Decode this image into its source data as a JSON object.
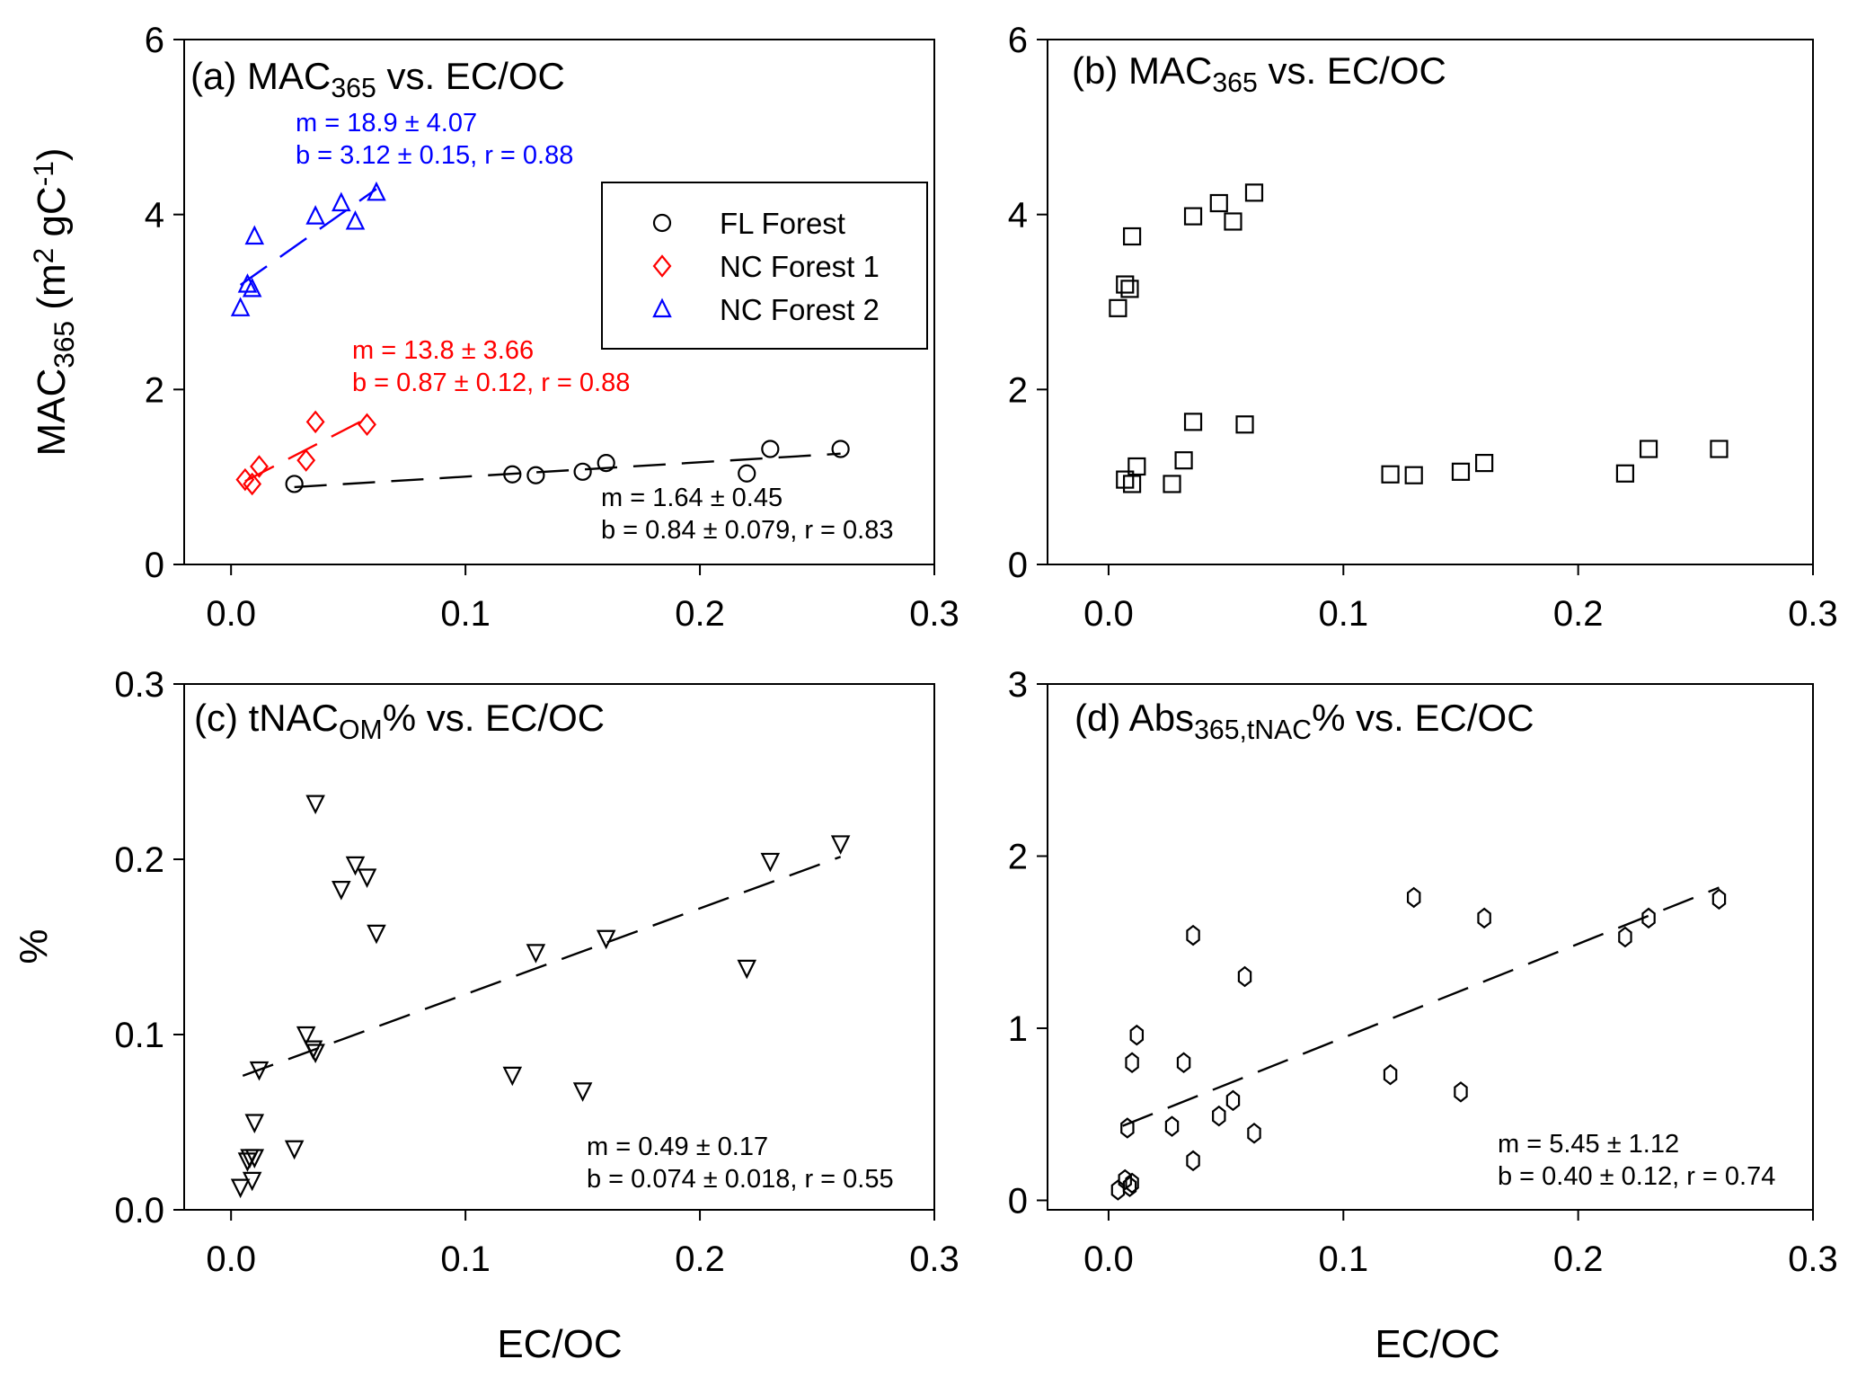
{
  "chart_data": [
    {
      "panel": "a",
      "type": "scatter",
      "title": [
        {
          "t": "(a) MAC"
        },
        {
          "t": "365",
          "sub": true
        },
        {
          "t": " vs. EC/OC"
        }
      ],
      "ylabel": [
        {
          "t": "MAC"
        },
        {
          "t": "365",
          "sub": true
        },
        {
          "t": " (m"
        },
        {
          "t": "2",
          "sup": true
        },
        {
          "t": " gC"
        },
        {
          "t": "-1",
          "sup": true
        },
        {
          "t": ")"
        }
      ],
      "xlabel": "",
      "xlim": [
        -0.02,
        0.3
      ],
      "ylim": [
        0,
        6
      ],
      "xticks": [
        "0.0",
        "0.1",
        "0.2",
        "0.3"
      ],
      "xtick_values": [
        0,
        0.1,
        0.2,
        0.3
      ],
      "yticks": [
        "0",
        "2",
        "4",
        "6"
      ],
      "ytick_values": [
        0,
        2,
        4,
        6
      ],
      "legend": {
        "placement": "top-right",
        "entries": [
          "FL Forest",
          "NC Forest 1",
          "NC Forest 2"
        ]
      },
      "series": [
        {
          "name": "FL Forest",
          "marker": "circle",
          "color": "#000000",
          "x": [
            0.027,
            0.12,
            0.13,
            0.15,
            0.16,
            0.22,
            0.23,
            0.26
          ],
          "y": [
            0.92,
            1.03,
            1.02,
            1.06,
            1.16,
            1.04,
            1.32,
            1.32
          ],
          "fit": {
            "m": 1.64,
            "b": 0.84,
            "x_range": [
              0.027,
              0.26
            ]
          },
          "equation": [
            "m = 1.64 ± 0.45",
            "b = 0.84 ± 0.079, r = 0.83"
          ]
        },
        {
          "name": "NC Forest 1",
          "marker": "diamond",
          "color": "#ff0000",
          "x": [
            0.006,
            0.009,
            0.012,
            0.032,
            0.036,
            0.058
          ],
          "y": [
            0.97,
            0.92,
            1.12,
            1.19,
            1.63,
            1.6
          ],
          "fit": {
            "m": 13.8,
            "b": 0.87,
            "x_range": [
              0.006,
              0.058
            ]
          },
          "equation": [
            "m = 13.8 ± 3.66",
            "b = 0.87 ± 0.12, r = 0.88"
          ]
        },
        {
          "name": "NC Forest 2",
          "marker": "triangle-up",
          "color": "#0000ff",
          "x": [
            0.004,
            0.007,
            0.009,
            0.01,
            0.036,
            0.047,
            0.053,
            0.062
          ],
          "y": [
            2.93,
            3.2,
            3.15,
            3.75,
            3.98,
            4.13,
            3.92,
            4.25
          ],
          "fit": {
            "m": 18.9,
            "b": 3.12,
            "x_range": [
              0.004,
              0.062
            ]
          },
          "equation": [
            "m = 18.9 ± 4.07",
            "b = 3.12 ± 0.15, r = 0.88"
          ]
        }
      ]
    },
    {
      "panel": "b",
      "type": "scatter",
      "title": [
        {
          "t": "(b) MAC"
        },
        {
          "t": "365",
          "sub": true
        },
        {
          "t": " vs. EC/OC"
        }
      ],
      "ylabel": [],
      "xlabel": "",
      "xlim": [
        -0.026,
        0.3
      ],
      "ylim": [
        0,
        6
      ],
      "xticks": [
        "0.0",
        "0.1",
        "0.2",
        "0.3"
      ],
      "xtick_values": [
        0,
        0.1,
        0.2,
        0.3
      ],
      "yticks": [
        "0",
        "2",
        "4",
        "6"
      ],
      "ytick_values": [
        0,
        2,
        4,
        6
      ],
      "series": [
        {
          "name": "all",
          "marker": "square",
          "color": "#000000",
          "x": [
            0.004,
            0.007,
            0.009,
            0.01,
            0.036,
            0.047,
            0.053,
            0.062,
            0.007,
            0.01,
            0.012,
            0.027,
            0.032,
            0.036,
            0.058,
            0.12,
            0.13,
            0.15,
            0.16,
            0.22,
            0.23,
            0.26
          ],
          "y": [
            2.93,
            3.2,
            3.15,
            3.75,
            3.98,
            4.13,
            3.92,
            4.25,
            0.97,
            0.92,
            1.12,
            0.92,
            1.19,
            1.63,
            1.6,
            1.03,
            1.02,
            1.06,
            1.16,
            1.04,
            1.32,
            1.32
          ]
        }
      ]
    },
    {
      "panel": "c",
      "type": "scatter",
      "title": [
        {
          "t": "(c) tNAC"
        },
        {
          "t": "OM",
          "sub": true
        },
        {
          "t": "% vs. EC/OC"
        }
      ],
      "ylabel": [
        {
          "t": "%"
        }
      ],
      "xlabel": "EC/OC",
      "xlim": [
        -0.02,
        0.3
      ],
      "ylim": [
        0,
        0.3
      ],
      "xticks": [
        "0.0",
        "0.1",
        "0.2",
        "0.3"
      ],
      "xtick_values": [
        0,
        0.1,
        0.2,
        0.3
      ],
      "yticks": [
        "0.0",
        "0.1",
        "0.2",
        "0.3"
      ],
      "ytick_values": [
        0,
        0.1,
        0.2,
        0.3
      ],
      "series": [
        {
          "name": "all",
          "marker": "triangle-down",
          "color": "#000000",
          "x": [
            0.004,
            0.007,
            0.008,
            0.009,
            0.01,
            0.01,
            0.012,
            0.027,
            0.032,
            0.035,
            0.036,
            0.036,
            0.047,
            0.053,
            0.058,
            0.062,
            0.12,
            0.13,
            0.15,
            0.16,
            0.22,
            0.23,
            0.26
          ],
          "y": [
            0.013,
            0.028,
            0.03,
            0.017,
            0.03,
            0.05,
            0.08,
            0.035,
            0.1,
            0.092,
            0.09,
            0.232,
            0.183,
            0.197,
            0.19,
            0.158,
            0.077,
            0.147,
            0.068,
            0.155,
            0.138,
            0.199,
            0.209
          ],
          "fit": {
            "m": 0.49,
            "b": 0.074,
            "x_range": [
              0.005,
              0.26
            ]
          },
          "equation": [
            "m = 0.49 ± 0.17",
            "b = 0.074 ± 0.018, r = 0.55"
          ]
        }
      ]
    },
    {
      "panel": "d",
      "type": "scatter",
      "title": [
        {
          "t": "(d) Abs"
        },
        {
          "t": "365,tNAC",
          "sub": true
        },
        {
          "t": "%  vs. EC/OC"
        }
      ],
      "ylabel": [],
      "xlabel": "EC/OC",
      "xlim": [
        -0.026,
        0.3
      ],
      "ylim": [
        -0.055,
        3
      ],
      "xticks": [
        "0.0",
        "0.1",
        "0.2",
        "0.3"
      ],
      "xtick_values": [
        0,
        0.1,
        0.2,
        0.3
      ],
      "yticks": [
        "0",
        "1",
        "2",
        "3"
      ],
      "ytick_values": [
        0,
        1,
        2,
        3
      ],
      "series": [
        {
          "name": "all",
          "marker": "hexagon",
          "color": "#000000",
          "x": [
            0.004,
            0.007,
            0.008,
            0.009,
            0.01,
            0.01,
            0.012,
            0.027,
            0.032,
            0.036,
            0.036,
            0.047,
            0.053,
            0.058,
            0.062,
            0.12,
            0.13,
            0.15,
            0.16,
            0.22,
            0.23,
            0.26
          ],
          "y": [
            0.06,
            0.12,
            0.42,
            0.08,
            0.1,
            0.8,
            0.96,
            0.43,
            0.8,
            1.54,
            0.23,
            0.49,
            0.58,
            1.3,
            0.39,
            0.73,
            1.76,
            0.63,
            1.64,
            1.53,
            1.64,
            1.75
          ],
          "fit": {
            "m": 5.45,
            "b": 0.4,
            "x_range": [
              0.006,
              0.26
            ]
          },
          "equation": [
            "m = 5.45 ± 1.12",
            "b = 0.40 ± 0.12, r = 0.74"
          ]
        }
      ]
    }
  ]
}
